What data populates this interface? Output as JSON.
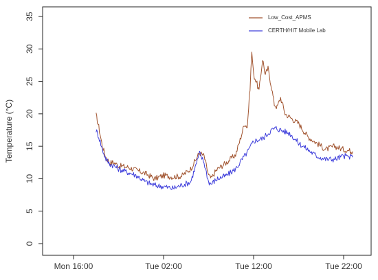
{
  "chart_data": {
    "type": "line",
    "title": "",
    "xlabel": "",
    "ylabel": "Temperature (°C)",
    "ylim": [
      0,
      35
    ],
    "yticks": [
      0,
      5,
      10,
      15,
      20,
      25,
      30,
      35
    ],
    "x_unit": "hours",
    "xlim": [
      -1.5,
      31.5
    ],
    "xticks": [
      {
        "value": 0,
        "label": "Mon 16:00"
      },
      {
        "value": 10,
        "label": "Tue 02:00"
      },
      {
        "value": 20,
        "label": "Tue 12:00"
      },
      {
        "value": 30,
        "label": "Tue 22:00"
      }
    ],
    "grid": false,
    "legend_position": "top-right",
    "series": [
      {
        "name": "Low_Cost_APMS",
        "color": "#a0522d",
        "x": [
          2.5,
          2.8,
          3.2,
          3.6,
          4.0,
          4.5,
          5.0,
          6.0,
          7.0,
          8.0,
          9.0,
          10.0,
          11.0,
          12.0,
          13.0,
          14.0,
          14.5,
          15.0,
          15.3,
          15.7,
          16.0,
          17.0,
          18.0,
          18.5,
          19.0,
          19.3,
          19.6,
          19.8,
          20.0,
          20.3,
          20.6,
          21.0,
          21.3,
          21.6,
          22.0,
          22.3,
          22.6,
          23.0,
          23.5,
          24.0,
          25.0,
          26.0,
          27.0,
          28.0,
          29.0,
          30.0,
          31.0
        ],
        "y": [
          19.8,
          18.0,
          15.0,
          13.3,
          12.5,
          12.5,
          12.0,
          11.8,
          11.3,
          10.8,
          10.0,
          10.5,
          10.3,
          10.4,
          11.5,
          14.0,
          13.5,
          10.5,
          10.0,
          11.0,
          11.5,
          12.5,
          13.7,
          16.0,
          18.5,
          18.0,
          24.0,
          29.6,
          26.0,
          25.0,
          23.5,
          28.5,
          26.0,
          27.0,
          24.0,
          21.5,
          21.0,
          22.5,
          20.0,
          19.5,
          18.5,
          16.5,
          15.5,
          14.5,
          15.0,
          14.5,
          14.2
        ]
      },
      {
        "name": "CERTH/HIT Mobile Lab",
        "color": "#3d3ddb",
        "x": [
          2.5,
          2.8,
          3.2,
          3.6,
          4.0,
          4.5,
          5.0,
          6.0,
          7.0,
          8.0,
          9.0,
          10.0,
          11.0,
          12.0,
          13.0,
          14.0,
          14.5,
          15.0,
          15.3,
          15.7,
          16.0,
          17.0,
          18.0,
          18.5,
          19.0,
          19.5,
          20.0,
          21.0,
          22.0,
          22.5,
          23.0,
          24.0,
          25.0,
          26.0,
          27.0,
          28.0,
          29.0,
          30.0,
          31.0
        ],
        "y": [
          17.5,
          16.5,
          14.5,
          13.0,
          12.3,
          12.0,
          11.5,
          11.0,
          10.5,
          9.5,
          9.0,
          8.8,
          8.5,
          9.0,
          9.5,
          13.9,
          12.5,
          9.5,
          9.2,
          9.7,
          10.0,
          10.5,
          11.5,
          12.5,
          13.5,
          14.5,
          15.8,
          16.2,
          17.5,
          17.8,
          17.5,
          17.0,
          15.5,
          14.5,
          13.5,
          13.0,
          13.0,
          13.5,
          13.3
        ]
      }
    ]
  }
}
